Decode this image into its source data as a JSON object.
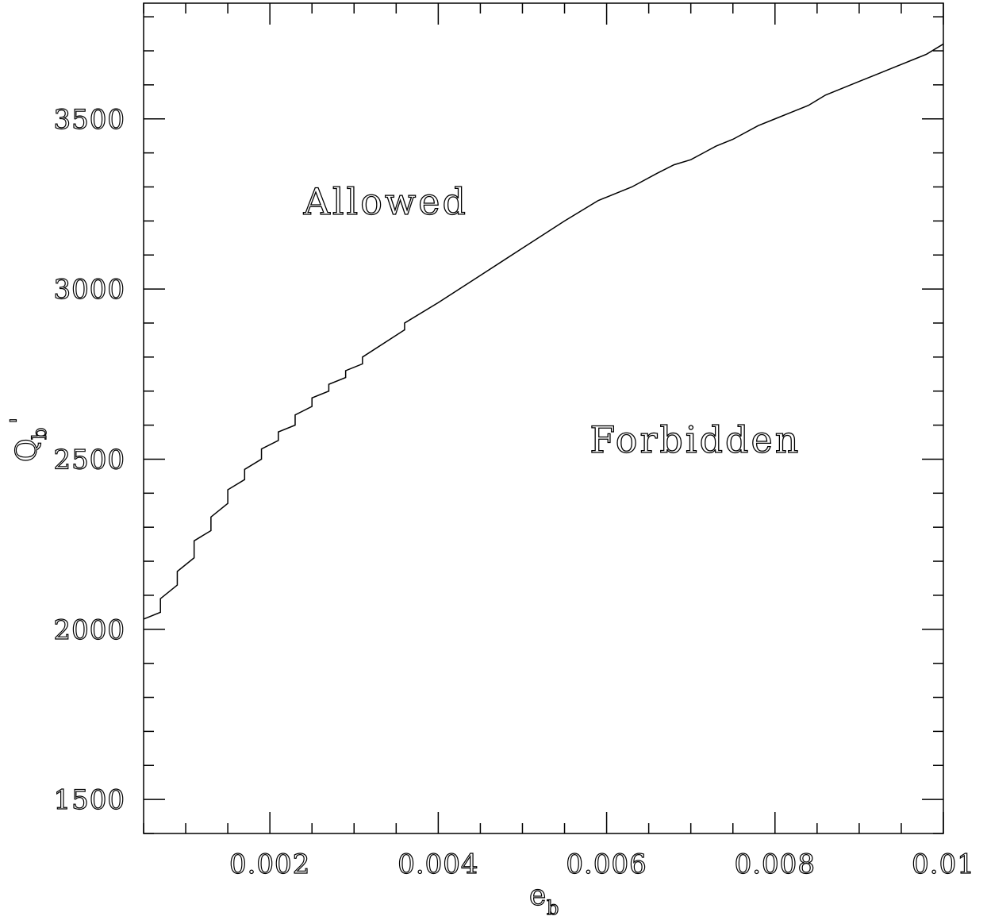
{
  "chart_data": {
    "type": "line",
    "title": "",
    "xlabel": "e",
    "xlabel_subscript": "b",
    "ylabel": "Q",
    "ylabel_subscript": "b",
    "ylabel_prime": "'",
    "xlim": [
      0.0005,
      0.01
    ],
    "ylim": [
      1400,
      3840
    ],
    "x_ticks": [
      0.002,
      0.004,
      0.006,
      0.008,
      0.01
    ],
    "x_tick_labels": [
      "0.002",
      "0.004",
      "0.006",
      "0.008",
      "0.01"
    ],
    "x_minor_step": 0.0005,
    "y_ticks": [
      1500,
      2000,
      2500,
      3000,
      3500
    ],
    "y_tick_labels": [
      "1500",
      "2000",
      "2500",
      "3000",
      "3500"
    ],
    "y_minor_step": 100,
    "grid": false,
    "annotations": [
      {
        "text": "Allowed",
        "x": 0.0024,
        "y": 3220
      },
      {
        "text": "Forbidden",
        "x": 0.0058,
        "y": 2520
      }
    ],
    "series": [
      {
        "x": [
          0.0005,
          0.0007,
          0.0007,
          0.0009,
          0.0009,
          0.0011,
          0.0011,
          0.0013,
          0.0013,
          0.0015,
          0.0015,
          0.0017,
          0.0017,
          0.0019,
          0.0019,
          0.0021,
          0.0021,
          0.0023,
          0.0023,
          0.0025,
          0.0025,
          0.0027,
          0.0027,
          0.0029,
          0.0029,
          0.0031,
          0.0031,
          0.0036,
          0.0036,
          0.004,
          0.0045,
          0.005,
          0.0055,
          0.0059,
          0.0061,
          0.0063,
          0.0066,
          0.0068,
          0.007,
          0.0073,
          0.0075,
          0.0078,
          0.008,
          0.0082,
          0.0084,
          0.0086,
          0.0088,
          0.009,
          0.0092,
          0.0094,
          0.0096,
          0.0098,
          0.01
        ],
        "y": [
          2030,
          2050,
          2090,
          2130,
          2170,
          2210,
          2260,
          2290,
          2330,
          2370,
          2410,
          2440,
          2470,
          2500,
          2530,
          2555,
          2580,
          2600,
          2630,
          2655,
          2680,
          2700,
          2720,
          2740,
          2760,
          2780,
          2800,
          2880,
          2900,
          2960,
          3040,
          3120,
          3200,
          3260,
          3280,
          3300,
          3340,
          3365,
          3380,
          3420,
          3440,
          3480,
          3500,
          3520,
          3540,
          3570,
          3590,
          3610,
          3630,
          3650,
          3670,
          3690,
          3720
        ]
      }
    ]
  }
}
